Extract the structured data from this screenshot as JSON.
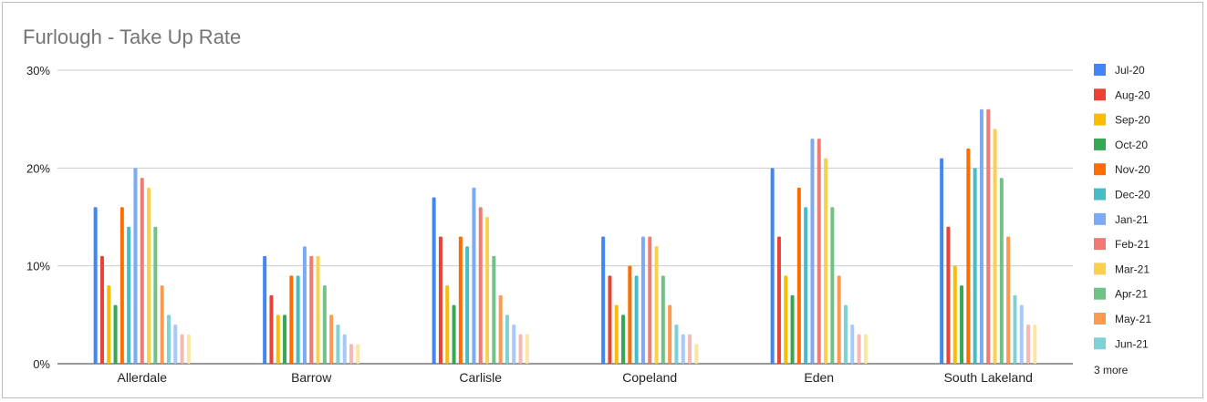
{
  "chart_data": {
    "type": "bar",
    "title": "Furlough - Take Up Rate",
    "xlabel": "",
    "ylabel": "",
    "ylim": [
      0,
      0.3
    ],
    "yticks": [
      {
        "value": 0,
        "label": "0%"
      },
      {
        "value": 0.1,
        "label": "10%"
      },
      {
        "value": 0.2,
        "label": "20%"
      },
      {
        "value": 0.3,
        "label": "30%"
      }
    ],
    "categories": [
      "Allerdale",
      "Barrow",
      "Carlisle",
      "Copeland",
      "Eden",
      "South Lakeland"
    ],
    "legend_position": "right",
    "legend_more_label": "3 more",
    "series": [
      {
        "name": "Jul-20",
        "color": "#4285F4",
        "values": [
          0.16,
          0.11,
          0.17,
          0.13,
          0.2,
          0.21
        ]
      },
      {
        "name": "Aug-20",
        "color": "#EA4335",
        "values": [
          0.11,
          0.07,
          0.13,
          0.09,
          0.13,
          0.14
        ]
      },
      {
        "name": "Sep-20",
        "color": "#FBBC04",
        "values": [
          0.08,
          0.05,
          0.08,
          0.06,
          0.09,
          0.1
        ]
      },
      {
        "name": "Oct-20",
        "color": "#34A853",
        "values": [
          0.06,
          0.05,
          0.06,
          0.05,
          0.07,
          0.08
        ]
      },
      {
        "name": "Nov-20",
        "color": "#FF6D01",
        "values": [
          0.16,
          0.09,
          0.13,
          0.1,
          0.18,
          0.22
        ]
      },
      {
        "name": "Dec-20",
        "color": "#46BDC6",
        "values": [
          0.14,
          0.09,
          0.12,
          0.09,
          0.16,
          0.2
        ]
      },
      {
        "name": "Jan-21",
        "color": "#7BAAF7",
        "values": [
          0.2,
          0.12,
          0.18,
          0.13,
          0.23,
          0.26
        ]
      },
      {
        "name": "Feb-21",
        "color": "#F07B72",
        "values": [
          0.19,
          0.11,
          0.16,
          0.13,
          0.23,
          0.26
        ]
      },
      {
        "name": "Mar-21",
        "color": "#FCD04F",
        "values": [
          0.18,
          0.11,
          0.15,
          0.12,
          0.21,
          0.24
        ]
      },
      {
        "name": "Apr-21",
        "color": "#71C287",
        "values": [
          0.14,
          0.08,
          0.11,
          0.09,
          0.16,
          0.19
        ]
      },
      {
        "name": "May-21",
        "color": "#FF994D",
        "values": [
          0.08,
          0.05,
          0.07,
          0.06,
          0.09,
          0.13
        ]
      },
      {
        "name": "Jun-21",
        "color": "#7ED1D7",
        "values": [
          0.05,
          0.04,
          0.05,
          0.04,
          0.06,
          0.07
        ]
      },
      {
        "color": "#A6C8FA",
        "values": [
          0.04,
          0.03,
          0.04,
          0.03,
          0.04,
          0.06
        ]
      },
      {
        "color": "#F6B8B3",
        "values": [
          0.03,
          0.02,
          0.03,
          0.03,
          0.03,
          0.04
        ]
      },
      {
        "color": "#FDE6A3",
        "values": [
          0.03,
          0.02,
          0.03,
          0.02,
          0.03,
          0.04
        ]
      }
    ]
  }
}
